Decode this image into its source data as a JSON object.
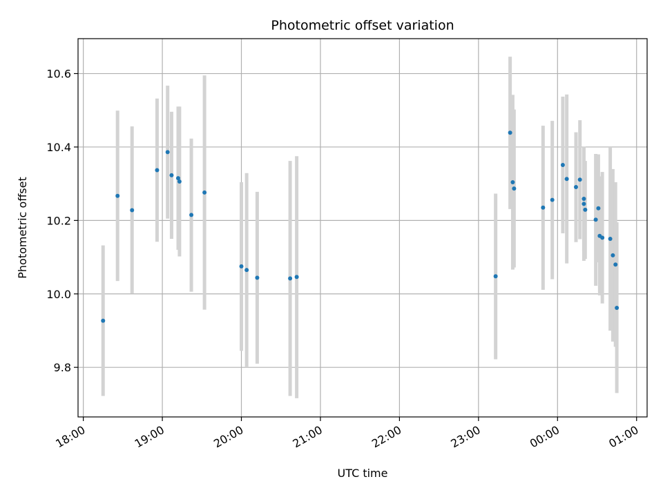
{
  "chart_data": {
    "type": "scatter",
    "title": "Photometric offset variation",
    "xlabel": "UTC time",
    "ylabel": "Photometric offset",
    "grid": true,
    "legend": "none",
    "xlim": [
      "17:56",
      "01:08"
    ],
    "ylim": [
      9.665,
      10.695
    ],
    "x_ticks": [
      "18:00",
      "19:00",
      "20:00",
      "21:00",
      "22:00",
      "23:00",
      "00:00",
      "01:00"
    ],
    "y_ticks": [
      9.8,
      10.0,
      10.2,
      10.4,
      10.6
    ],
    "y_tick_labels": [
      "9.8",
      "10.0",
      "10.2",
      "10.4",
      "10.6"
    ],
    "colors": {
      "point": "#1f77b4",
      "errorbar": "#d3d3d3",
      "grid": "#b0b0b0"
    },
    "points": [
      {
        "t": "18:15",
        "y": 9.927,
        "lo": 9.722,
        "hi": 10.132
      },
      {
        "t": "18:26",
        "y": 10.267,
        "lo": 10.035,
        "hi": 10.499
      },
      {
        "t": "18:37",
        "y": 10.228,
        "lo": 10.001,
        "hi": 10.456
      },
      {
        "t": "18:56",
        "y": 10.337,
        "lo": 10.142,
        "hi": 10.532
      },
      {
        "t": "19:04",
        "y": 10.386,
        "lo": 10.205,
        "hi": 10.567
      },
      {
        "t": "19:07",
        "y": 10.323,
        "lo": 10.15,
        "hi": 10.496
      },
      {
        "t": "19:12",
        "y": 10.315,
        "lo": 10.12,
        "hi": 10.51
      },
      {
        "t": "19:13",
        "y": 10.306,
        "lo": 10.102,
        "hi": 10.51
      },
      {
        "t": "19:22",
        "y": 10.215,
        "lo": 10.006,
        "hi": 10.423
      },
      {
        "t": "19:32",
        "y": 10.276,
        "lo": 9.957,
        "hi": 10.595
      },
      {
        "t": "20:00",
        "y": 10.075,
        "lo": 9.845,
        "hi": 10.304
      },
      {
        "t": "20:04",
        "y": 10.065,
        "lo": 9.8,
        "hi": 10.329
      },
      {
        "t": "20:12",
        "y": 10.044,
        "lo": 9.81,
        "hi": 10.278
      },
      {
        "t": "20:37",
        "y": 10.042,
        "lo": 9.722,
        "hi": 10.362
      },
      {
        "t": "20:42",
        "y": 10.046,
        "lo": 9.716,
        "hi": 10.375
      },
      {
        "t": "23:13",
        "y": 10.048,
        "lo": 9.822,
        "hi": 10.273
      },
      {
        "t": "23:24",
        "y": 10.439,
        "lo": 10.231,
        "hi": 10.646
      },
      {
        "t": "23:26",
        "y": 10.304,
        "lo": 10.066,
        "hi": 10.542
      },
      {
        "t": "23:27",
        "y": 10.287,
        "lo": 10.072,
        "hi": 10.502
      },
      {
        "t": "23:49",
        "y": 10.235,
        "lo": 10.011,
        "hi": 10.458
      },
      {
        "t": "23:56",
        "y": 10.256,
        "lo": 10.04,
        "hi": 10.471
      },
      {
        "t": "00:04",
        "y": 10.351,
        "lo": 10.165,
        "hi": 10.537
      },
      {
        "t": "00:07",
        "y": 10.313,
        "lo": 10.083,
        "hi": 10.543
      },
      {
        "t": "00:14",
        "y": 10.291,
        "lo": 10.141,
        "hi": 10.44
      },
      {
        "t": "00:17",
        "y": 10.311,
        "lo": 10.149,
        "hi": 10.473
      },
      {
        "t": "00:20",
        "y": 10.259,
        "lo": 10.117,
        "hi": 10.401
      },
      {
        "t": "00:20",
        "y": 10.245,
        "lo": 10.09,
        "hi": 10.4
      },
      {
        "t": "00:21",
        "y": 10.229,
        "lo": 10.095,
        "hi": 10.362
      },
      {
        "t": "00:29",
        "y": 10.202,
        "lo": 10.022,
        "hi": 10.381
      },
      {
        "t": "00:31",
        "y": 10.233,
        "lo": 10.086,
        "hi": 10.38
      },
      {
        "t": "00:32",
        "y": 10.158,
        "lo": 9.996,
        "hi": 10.32
      },
      {
        "t": "00:34",
        "y": 10.153,
        "lo": 9.974,
        "hi": 10.332
      },
      {
        "t": "00:40",
        "y": 10.15,
        "lo": 9.9,
        "hi": 10.4
      },
      {
        "t": "00:42",
        "y": 10.105,
        "lo": 9.87,
        "hi": 10.34
      },
      {
        "t": "00:44",
        "y": 10.08,
        "lo": 9.856,
        "hi": 10.304
      },
      {
        "t": "00:45",
        "y": 9.962,
        "lo": 9.73,
        "hi": 10.195
      }
    ]
  }
}
